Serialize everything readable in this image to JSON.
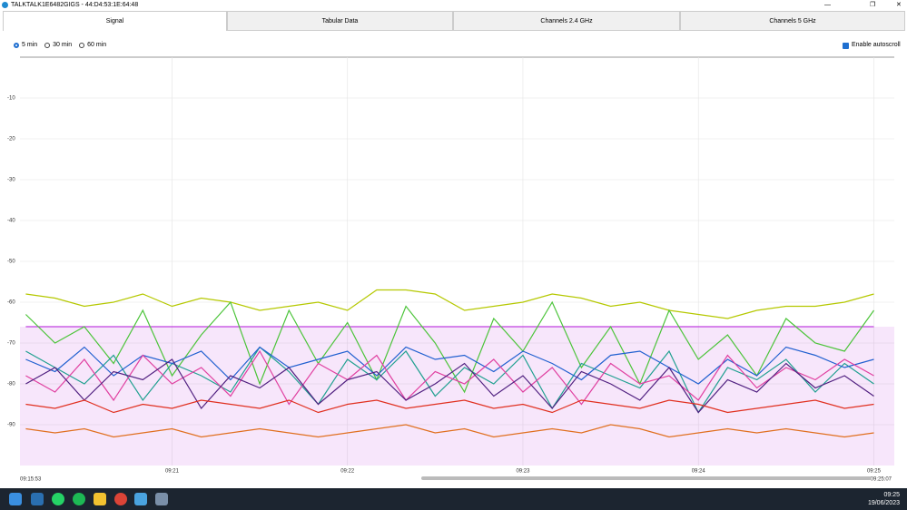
{
  "window": {
    "title": "TALKTALK1E6482GIGS - 44:D4:53:1E:64:48"
  },
  "tabs": [
    "Signal",
    "Tabular Data",
    "Channels 2.4 GHz",
    "Channels 5 GHz"
  ],
  "range_options": [
    "5 min",
    "30 min",
    "60 min"
  ],
  "autoscroll": "Enable autoscroll",
  "scroll": {
    "start": "09:15:53",
    "end": "09:25:07"
  },
  "taskbar": {
    "time": "09:25",
    "date": "19/06/2023"
  },
  "chart_data": {
    "type": "line",
    "x": [
      "09:20:10",
      "09:20:20",
      "09:20:30",
      "09:20:40",
      "09:20:50",
      "09:21:00",
      "09:21:10",
      "09:21:20",
      "09:21:30",
      "09:21:40",
      "09:21:50",
      "09:22:00",
      "09:22:10",
      "09:22:20",
      "09:22:30",
      "09:22:40",
      "09:22:50",
      "09:23:00",
      "09:23:10",
      "09:23:20",
      "09:23:30",
      "09:23:40",
      "09:23:50",
      "09:24:00",
      "09:24:10",
      "09:24:20",
      "09:24:30",
      "09:24:40",
      "09:24:50",
      "09:25:00"
    ],
    "xlim": [
      "09:20:08",
      "09:25:07"
    ],
    "xticks": [
      "09:21",
      "09:22",
      "09:23",
      "09:24",
      "09:25"
    ],
    "ylim": [
      -100,
      0
    ],
    "yticks": [
      -10,
      -20,
      -30,
      -40,
      -50,
      -60,
      -70,
      -80,
      -90
    ],
    "grid": true,
    "series": [
      {
        "color": "#c040e0",
        "fill": true,
        "values": [
          -66,
          -66,
          -66,
          -66,
          -66,
          -66,
          -66,
          -66,
          -66,
          -66,
          -66,
          -66,
          -66,
          -66,
          -66,
          -66,
          -66,
          -66,
          -66,
          -66,
          -66,
          -66,
          -66,
          -66,
          -66,
          -66,
          -66,
          -66,
          -66,
          -66
        ]
      },
      {
        "color": "#b5c800",
        "values": [
          -58,
          -59,
          -61,
          -60,
          -58,
          -61,
          -59,
          -60,
          -62,
          -61,
          -60,
          -62,
          -57,
          -57,
          -58,
          -62,
          -61,
          -60,
          -58,
          -59,
          -61,
          -60,
          -62,
          -63,
          -64,
          -62,
          -61,
          -61,
          -60,
          -58
        ]
      },
      {
        "color": "#4cc43a",
        "values": [
          -63,
          -70,
          -66,
          -75,
          -62,
          -78,
          -68,
          -60,
          -80,
          -62,
          -75,
          -65,
          -79,
          -61,
          -70,
          -82,
          -64,
          -72,
          -60,
          -76,
          -66,
          -80,
          -62,
          -74,
          -68,
          -78,
          -64,
          -70,
          -72,
          -62
        ]
      },
      {
        "color": "#20a090",
        "values": [
          -72,
          -76,
          -80,
          -73,
          -84,
          -75,
          -78,
          -82,
          -71,
          -77,
          -85,
          -74,
          -79,
          -72,
          -83,
          -76,
          -80,
          -73,
          -86,
          -75,
          -78,
          -81,
          -72,
          -87,
          -76,
          -79,
          -74,
          -82,
          -75,
          -80
        ]
      },
      {
        "color": "#2060d0",
        "values": [
          -74,
          -77,
          -71,
          -78,
          -73,
          -75,
          -72,
          -79,
          -71,
          -76,
          -74,
          -72,
          -78,
          -71,
          -74,
          -73,
          -77,
          -72,
          -75,
          -79,
          -73,
          -72,
          -76,
          -80,
          -74,
          -78,
          -71,
          -73,
          -76,
          -74
        ]
      },
      {
        "color": "#e040a0",
        "values": [
          -78,
          -82,
          -74,
          -84,
          -73,
          -80,
          -76,
          -83,
          -72,
          -85,
          -75,
          -79,
          -73,
          -84,
          -77,
          -80,
          -74,
          -82,
          -76,
          -85,
          -75,
          -80,
          -78,
          -84,
          -73,
          -81,
          -76,
          -79,
          -74,
          -78
        ]
      },
      {
        "color": "#502080",
        "values": [
          -80,
          -76,
          -84,
          -77,
          -79,
          -74,
          -86,
          -78,
          -81,
          -76,
          -85,
          -79,
          -77,
          -84,
          -80,
          -75,
          -83,
          -78,
          -86,
          -77,
          -80,
          -84,
          -76,
          -87,
          -79,
          -82,
          -75,
          -81,
          -78,
          -83
        ]
      },
      {
        "color": "#e03020",
        "values": [
          -85,
          -86,
          -84,
          -87,
          -85,
          -86,
          -84,
          -85,
          -86,
          -84,
          -87,
          -85,
          -84,
          -86,
          -85,
          -84,
          -86,
          -85,
          -87,
          -84,
          -85,
          -86,
          -84,
          -85,
          -87,
          -86,
          -85,
          -84,
          -86,
          -85
        ]
      },
      {
        "color": "#e07020",
        "values": [
          -91,
          -92,
          -91,
          -93,
          -92,
          -91,
          -93,
          -92,
          -91,
          -92,
          -93,
          -92,
          -91,
          -90,
          -92,
          -91,
          -93,
          -92,
          -91,
          -92,
          -90,
          -91,
          -93,
          -92,
          -91,
          -92,
          -91,
          -92,
          -93,
          -92
        ]
      }
    ]
  }
}
